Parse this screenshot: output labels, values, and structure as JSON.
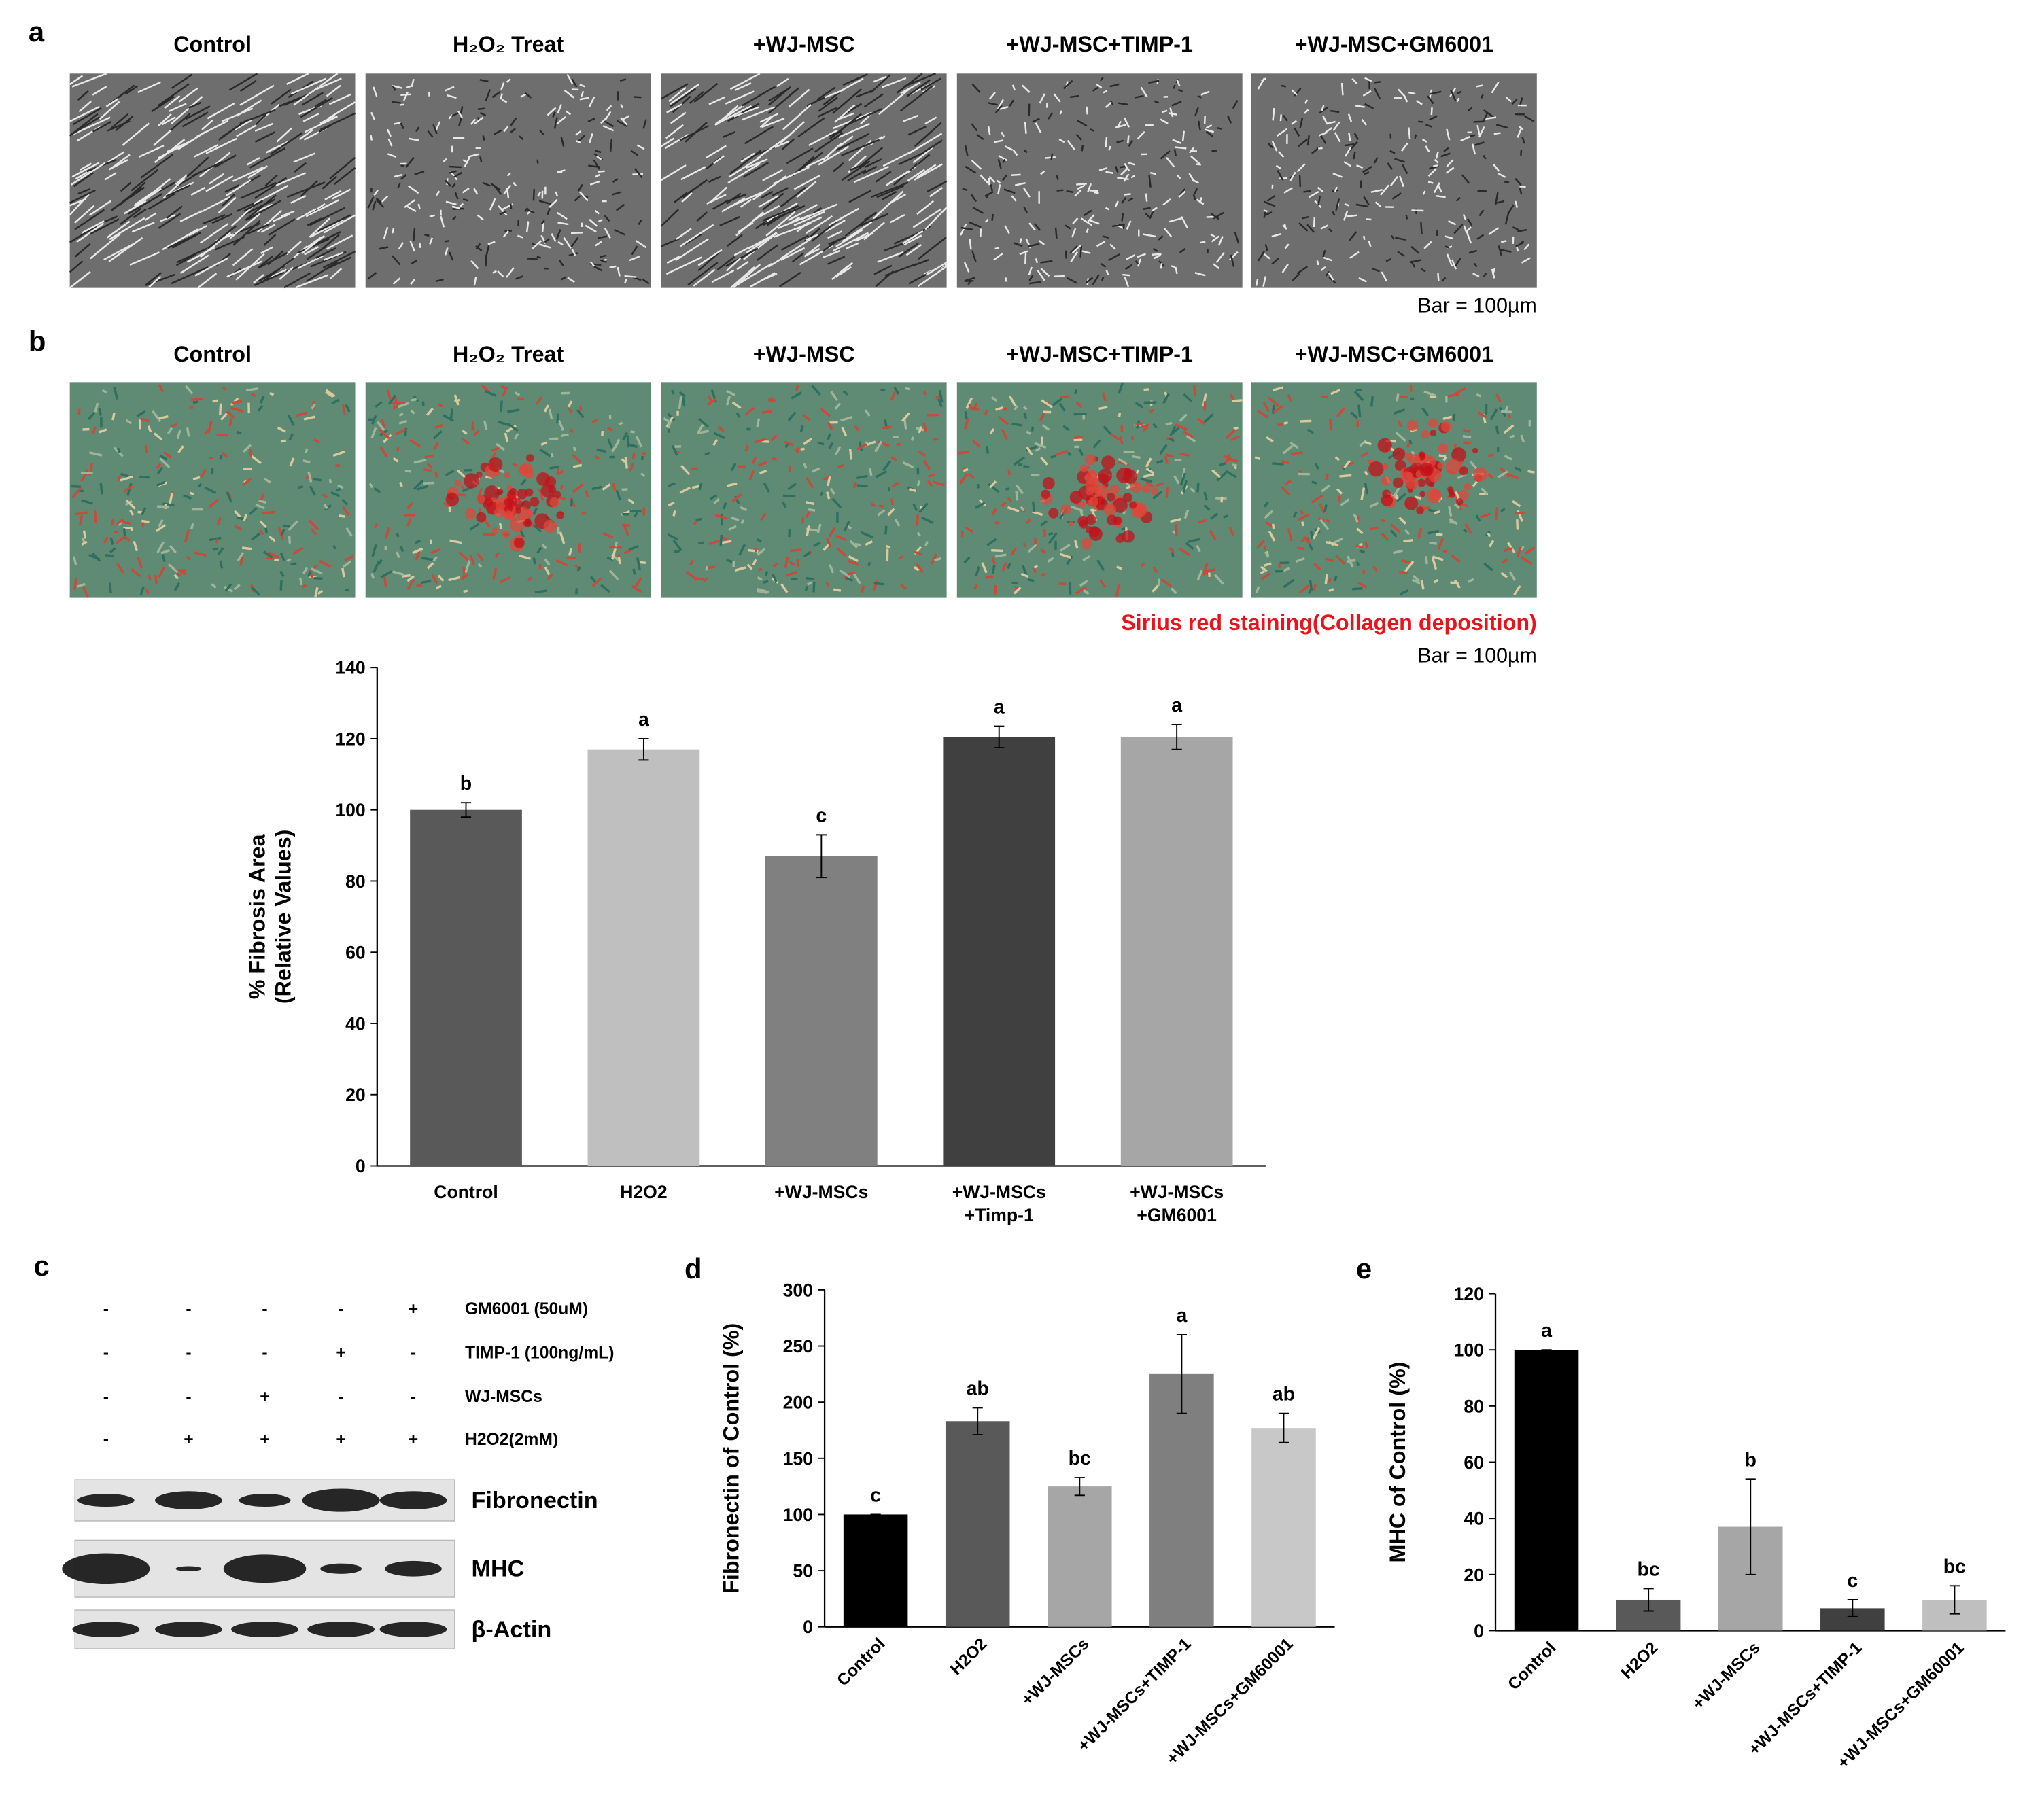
{
  "panel_a": {
    "label": "a",
    "titles": [
      "Control",
      "H₂O₂ Treat",
      "+WJ-MSC",
      "+WJ-MSC+TIMP-1",
      "+WJ-MSC+GM6001"
    ],
    "scale_bar": "Bar = 100µm"
  },
  "panel_b": {
    "label": "b",
    "titles": [
      "Control",
      "H₂O₂ Treat",
      "+WJ-MSC",
      "+WJ-MSC+TIMP-1",
      "+WJ-MSC+GM6001"
    ],
    "stain_note": "Sirius red staining(Collagen deposition)",
    "scale_bar": "Bar = 100µm"
  },
  "panel_c": {
    "label": "c",
    "treatments": [
      {
        "name": "GM6001 (50uM)",
        "signs": [
          "-",
          "-",
          "-",
          "-",
          "+"
        ]
      },
      {
        "name": "TIMP-1 (100ng/mL)",
        "signs": [
          "-",
          "-",
          "-",
          "+",
          "-"
        ]
      },
      {
        "name": "WJ-MSCs",
        "signs": [
          "-",
          "-",
          "+",
          "-",
          "-"
        ]
      },
      {
        "name": "H2O2(2mM)",
        "signs": [
          "-",
          "+",
          "+",
          "+",
          "+"
        ]
      }
    ],
    "blots": [
      "Fibronectin",
      "MHC",
      "β-Actin"
    ]
  },
  "chart_data": [
    {
      "type": "bar",
      "ylabel": [
        "% Fibrosis Area",
        "(Relative Values)"
      ],
      "categories": [
        [
          "Control"
        ],
        [
          "H2O2"
        ],
        [
          "+WJ-MSCs"
        ],
        [
          "+WJ-MSCs",
          "+Timp-1"
        ],
        [
          "+WJ-MSCs",
          "+GM6001"
        ]
      ],
      "values": [
        100,
        117,
        87,
        120.5,
        120.5
      ],
      "errors": [
        2,
        3,
        6,
        3,
        3.5
      ],
      "annotations": [
        "b",
        "a",
        "c",
        "a",
        "a"
      ],
      "colors": [
        "#595959",
        "#bfbfbf",
        "#808080",
        "#404040",
        "#a6a6a6"
      ],
      "ylim": [
        0,
        140
      ],
      "yticks": [
        0,
        20,
        40,
        60,
        80,
        100,
        120,
        140
      ]
    },
    {
      "type": "bar",
      "panel_label": "d",
      "ylabel": [
        "Fibronectin of Control (%)"
      ],
      "categories": [
        [
          "Control"
        ],
        [
          "H2O2"
        ],
        [
          "+WJ-MSCs"
        ],
        [
          "+WJ-MSCs+TIMP-1"
        ],
        [
          "+WJ-MSCs+GM60001"
        ]
      ],
      "values": [
        100,
        183,
        125,
        225,
        177
      ],
      "errors": [
        0,
        12,
        8,
        35,
        13
      ],
      "annotations": [
        "c",
        "ab",
        "bc",
        "a",
        "ab"
      ],
      "colors": [
        "#000000",
        "#595959",
        "#a6a6a6",
        "#7f7f7f",
        "#c8c8c8"
      ],
      "ylim": [
        0,
        300
      ],
      "yticks": [
        0,
        50,
        100,
        150,
        200,
        250,
        300
      ]
    },
    {
      "type": "bar",
      "panel_label": "e",
      "ylabel": [
        "MHC of Control (%)"
      ],
      "categories": [
        [
          "Control"
        ],
        [
          "H2O2"
        ],
        [
          "+WJ-MSCs"
        ],
        [
          "+WJ-MSCs+TIMP-1"
        ],
        [
          "+WJ-MSCs+GM60001"
        ]
      ],
      "values": [
        100,
        11,
        37,
        8,
        11
      ],
      "errors": [
        0,
        4,
        17,
        3,
        5
      ],
      "annotations": [
        "a",
        "bc",
        "b",
        "c",
        "bc"
      ],
      "colors": [
        "#000000",
        "#595959",
        "#a6a6a6",
        "#404040",
        "#bfbfbf"
      ],
      "ylim": [
        0,
        120
      ],
      "yticks": [
        0,
        20,
        40,
        60,
        80,
        100,
        120
      ]
    }
  ]
}
